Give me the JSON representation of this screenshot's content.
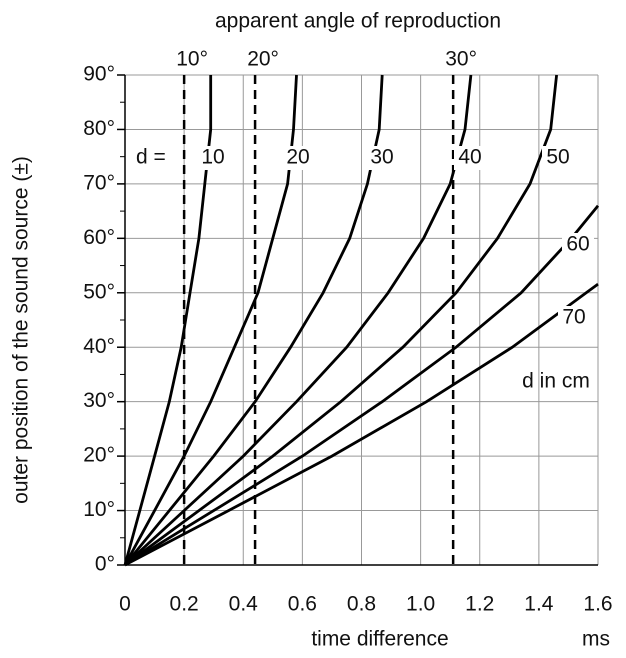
{
  "chart_data": {
    "type": "line",
    "title": "apparent angle of reproduction",
    "x_label": "time difference",
    "x_unit": "ms",
    "y_label": "outer position of the sound source (±)",
    "annotation_d": "d =",
    "annotation_unit": "d in cm",
    "xlim": [
      0,
      1.6
    ],
    "xticks": [
      0,
      0.2,
      0.4,
      0.6,
      0.8,
      {
        "value": 1.0,
        "label": "1.0"
      },
      1.2,
      1.4,
      1.6
    ],
    "ylim": [
      0,
      90
    ],
    "yticks": [
      {
        "value": 0,
        "label": "0°"
      },
      {
        "value": 10,
        "label": "10°"
      },
      {
        "value": 20,
        "label": "20°"
      },
      {
        "value": 30,
        "label": "30°"
      },
      {
        "value": 40,
        "label": "40°"
      },
      {
        "value": 50,
        "label": "50°"
      },
      {
        "value": 60,
        "label": "60°"
      },
      {
        "value": 70,
        "label": "70°"
      },
      {
        "value": 80,
        "label": "80°"
      },
      {
        "value": 90,
        "label": "90°"
      }
    ],
    "grid": true,
    "color": "#000000",
    "reference_lines": [
      {
        "x": 0.2,
        "label": "10°"
      },
      {
        "x": 0.44,
        "label": "20°"
      },
      {
        "x": 1.11,
        "label": "30°"
      }
    ],
    "series": [
      {
        "name": "10",
        "x": [
          0,
          0.05,
          0.1,
          0.15,
          0.19,
          0.22,
          0.25,
          0.27,
          0.29,
          0.29
        ],
        "values": [
          0,
          10,
          20,
          30,
          40,
          50,
          60,
          70,
          80,
          90
        ]
      },
      {
        "name": "20",
        "x": [
          0,
          0.1,
          0.2,
          0.29,
          0.37,
          0.45,
          0.5,
          0.55,
          0.57,
          0.58
        ],
        "values": [
          0,
          10,
          20,
          30,
          40,
          50,
          60,
          70,
          80,
          90
        ]
      },
      {
        "name": "30",
        "x": [
          0,
          0.15,
          0.3,
          0.44,
          0.56,
          0.67,
          0.76,
          0.82,
          0.86,
          0.87
        ],
        "values": [
          0,
          10,
          20,
          30,
          40,
          50,
          60,
          70,
          80,
          90
        ]
      },
      {
        "name": "40",
        "x": [
          0,
          0.2,
          0.4,
          0.58,
          0.75,
          0.89,
          1.01,
          1.1,
          1.15,
          1.17
        ],
        "values": [
          0,
          10,
          20,
          30,
          40,
          50,
          60,
          70,
          80,
          90
        ]
      },
      {
        "name": "50",
        "x": [
          0,
          0.25,
          0.5,
          0.73,
          0.94,
          1.12,
          1.26,
          1.37,
          1.44,
          1.46
        ],
        "values": [
          0,
          10,
          20,
          30,
          40,
          50,
          60,
          70,
          80,
          90
        ]
      },
      {
        "name": "60",
        "x": [
          0,
          0.3,
          0.6,
          0.87,
          1.12,
          1.34,
          1.51,
          1.6
        ],
        "values": [
          0,
          10,
          20,
          30,
          40,
          50,
          60,
          66
        ]
      },
      {
        "name": "70",
        "x": [
          0,
          0.35,
          0.7,
          1.02,
          1.31,
          1.56,
          1.6
        ],
        "values": [
          0,
          10,
          20,
          30,
          40,
          50,
          51.6
        ]
      }
    ]
  }
}
